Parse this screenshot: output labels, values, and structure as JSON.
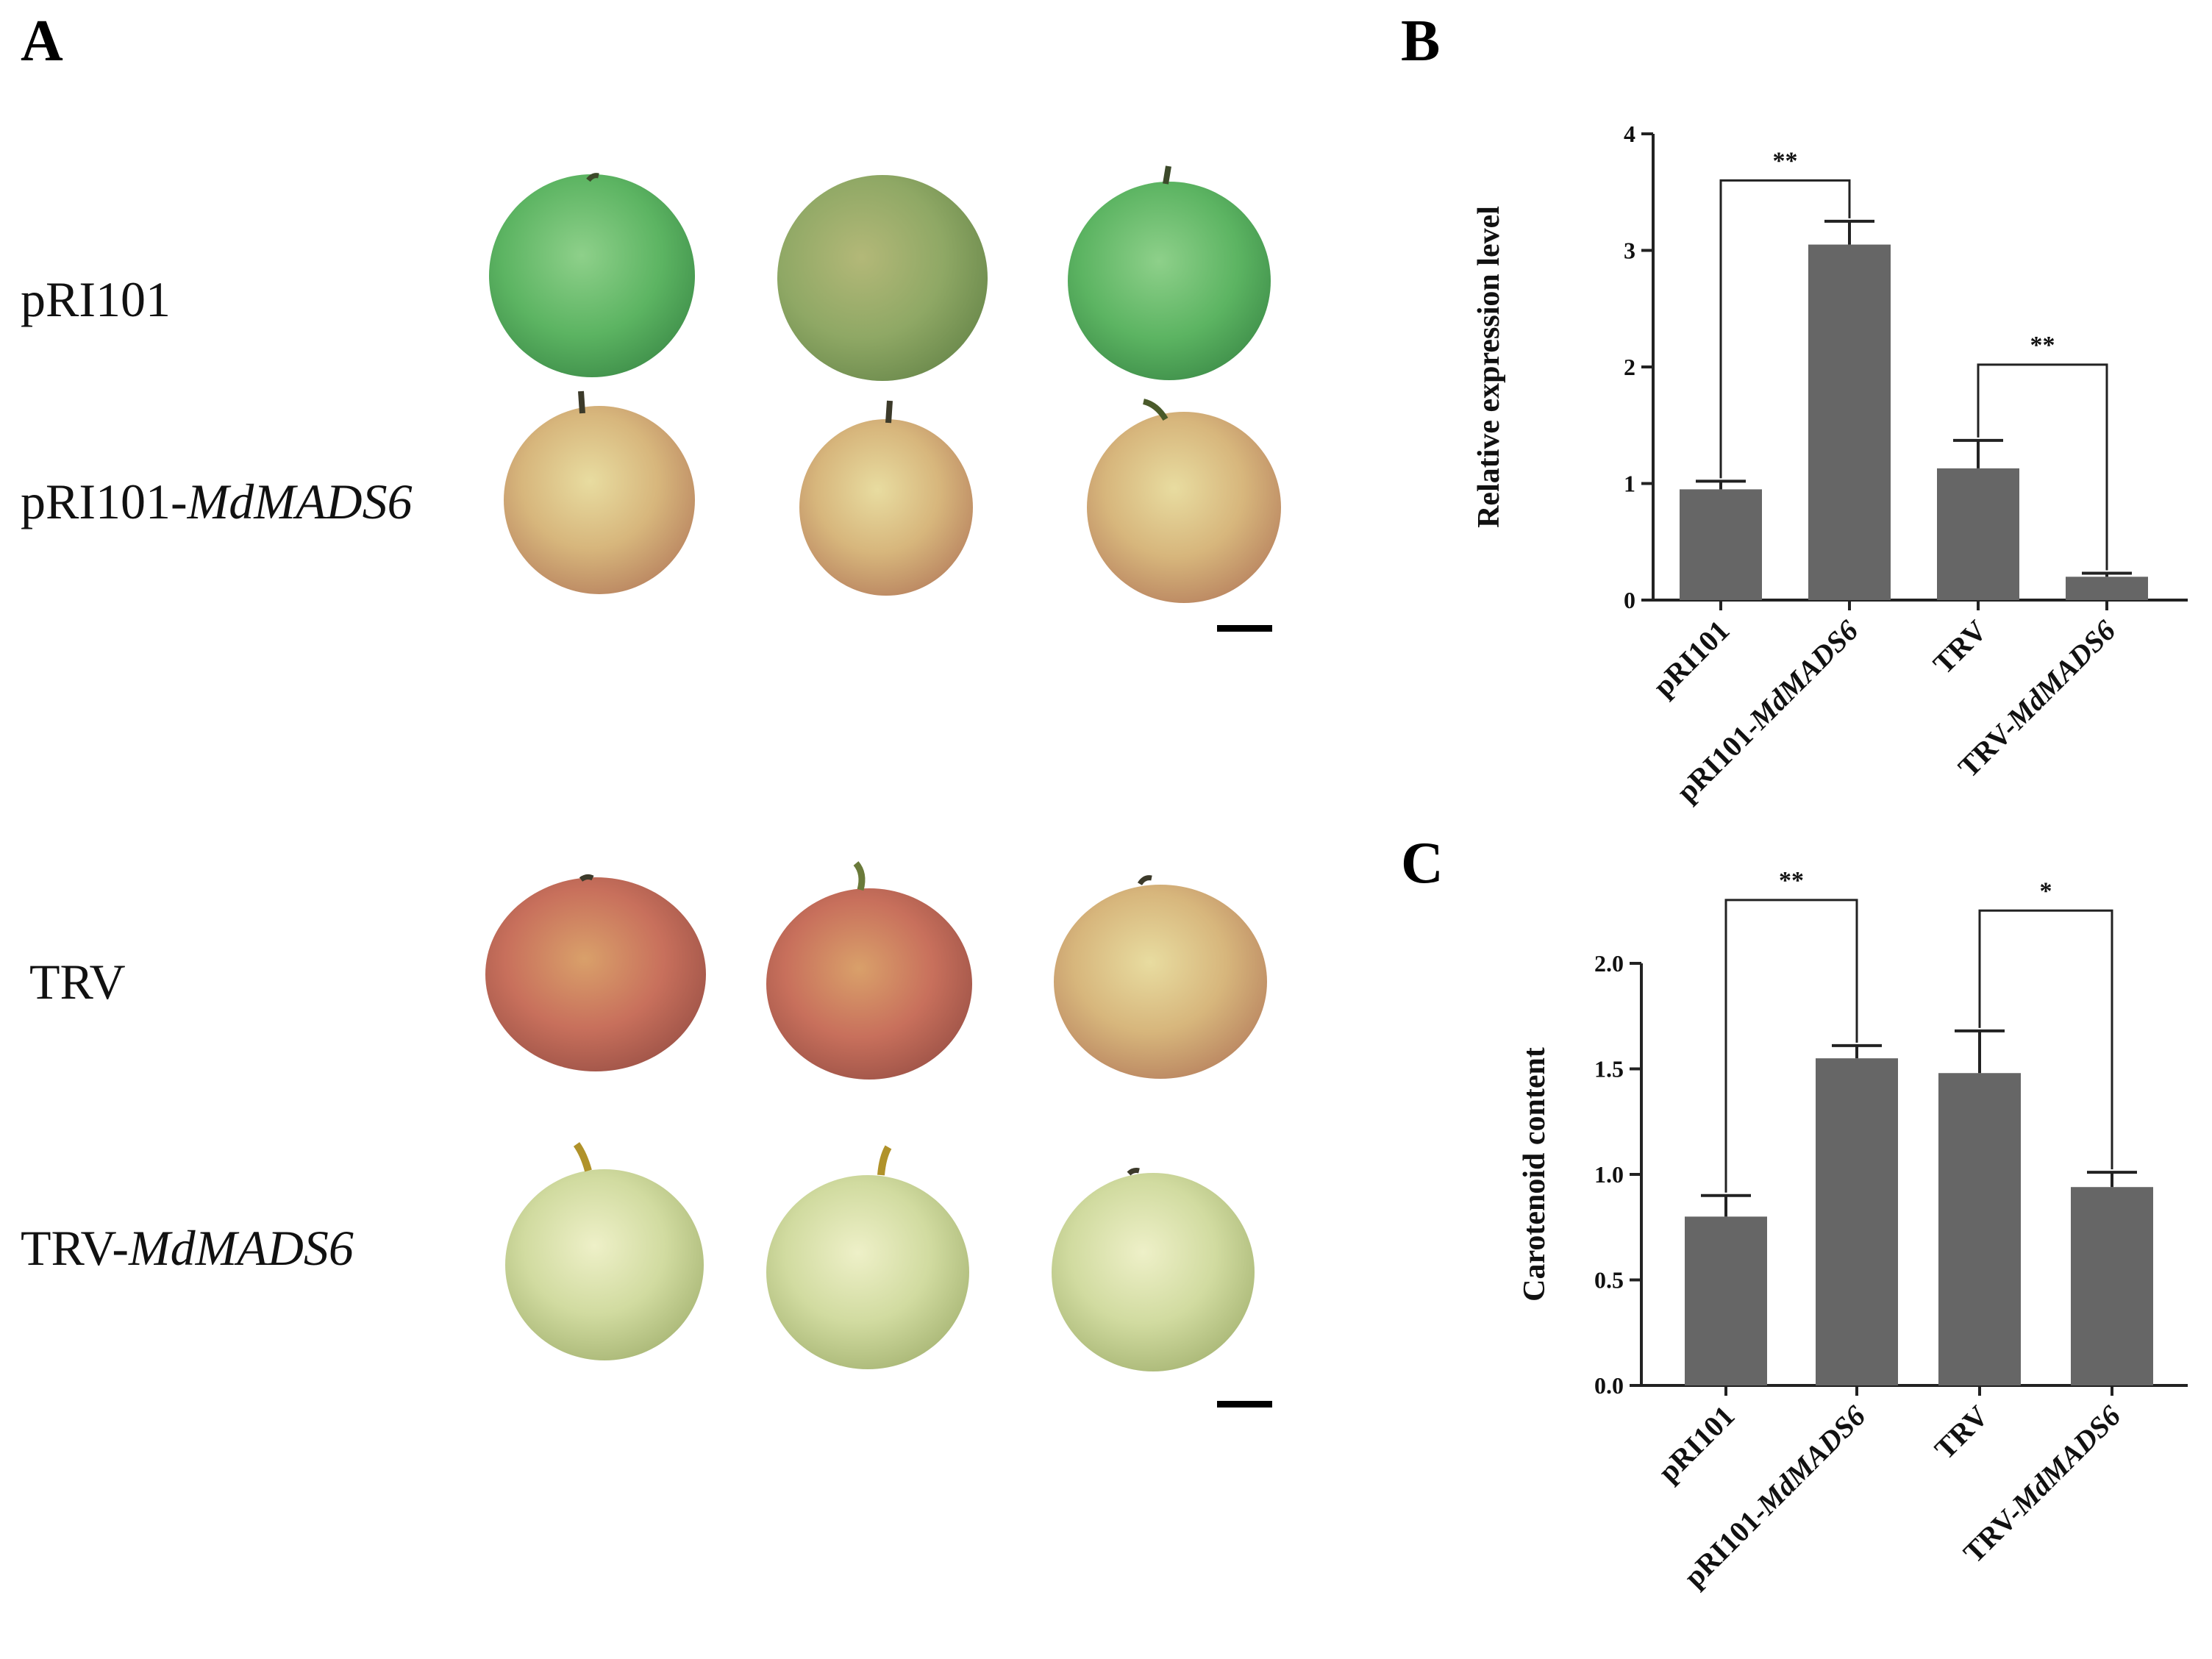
{
  "panels": {
    "a": {
      "letter": "A"
    },
    "b": {
      "letter": "B"
    },
    "c": {
      "letter": "C"
    }
  },
  "photo_rows": [
    {
      "label": "pRI101",
      "gene": "",
      "fruit_color": "green"
    },
    {
      "label": "pRI101-",
      "gene": "MdMADS6",
      "fruit_color": "yellow-red"
    },
    {
      "label": "TRV",
      "gene": "",
      "fruit_color": "red"
    },
    {
      "label": "TRV-",
      "gene": "MdMADS6",
      "fruit_color": "yellow-green"
    }
  ],
  "colors": {
    "bar": "#666666",
    "axis": "#222222",
    "green_apple": "#62b566",
    "red_apple": "#c9605a",
    "yellow_apple": "#c8cf82"
  },
  "chart_data": [
    {
      "panel": "B",
      "type": "bar",
      "categories": [
        "pRI101",
        "pRI101-MdMADS6",
        "TRV",
        "TRV-MdMADS6"
      ],
      "category_parts": [
        {
          "plain": "pRI101",
          "italic": ""
        },
        {
          "plain": "pRI101-",
          "italic": "MdMADS6"
        },
        {
          "plain": "TRV",
          "italic": ""
        },
        {
          "plain": "TRV-",
          "italic": "MdMADS6"
        }
      ],
      "values": [
        0.95,
        3.05,
        1.13,
        0.2
      ],
      "errors": [
        0.07,
        0.2,
        0.24,
        0.03
      ],
      "ylabel": "Relative expression level",
      "xlabel": "",
      "ylim": [
        0,
        4
      ],
      "yticks": [
        "0",
        "1",
        "2",
        "3",
        "4"
      ],
      "significance": [
        {
          "between": [
            0,
            1
          ],
          "label": "**",
          "height": 3.6
        },
        {
          "between": [
            2,
            3
          ],
          "label": "**",
          "height": 2.02
        }
      ]
    },
    {
      "panel": "C",
      "type": "bar",
      "categories": [
        "pRI101",
        "pRI101-MdMADS6",
        "TRV",
        "TRV-MdMADS6"
      ],
      "category_parts": [
        {
          "plain": "pRI101",
          "italic": ""
        },
        {
          "plain": "pRI101-",
          "italic": "MdMADS6"
        },
        {
          "plain": "TRV",
          "italic": ""
        },
        {
          "plain": "TRV-",
          "italic": "MdMADS6"
        }
      ],
      "values": [
        0.8,
        1.55,
        1.48,
        0.94
      ],
      "errors": [
        0.1,
        0.06,
        0.2,
        0.07
      ],
      "ylabel": "Carotenoid content",
      "xlabel": "",
      "ylim": [
        0,
        2.0
      ],
      "yticks": [
        "0.0",
        "0.5",
        "1.0",
        "1.5",
        "2.0"
      ],
      "significance": [
        {
          "between": [
            0,
            1
          ],
          "label": "**",
          "height": 2.3
        },
        {
          "between": [
            2,
            3
          ],
          "label": "*",
          "height": 2.25
        }
      ]
    }
  ]
}
